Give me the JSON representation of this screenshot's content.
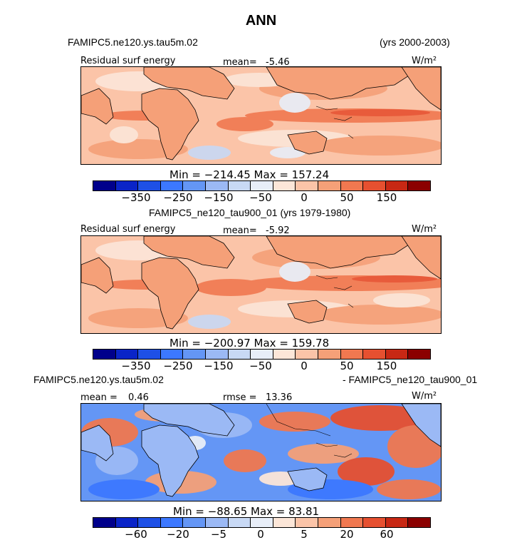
{
  "title": "ANN",
  "chart_data": [
    {
      "type": "heatmap",
      "case_name": "FAMIPC5.ne120.ys.tau5m.02",
      "years": "(yrs 2000-2003)",
      "variable": "Residual surf energy",
      "mean_label": "mean=",
      "mean_value": "-5.46",
      "units": "W/m²",
      "min_max_text": "Min = −214.45 Max = 157.24",
      "min": -214.45,
      "max": 157.24,
      "tick_labels": [
        "−350",
        "−250",
        "−150",
        "−50",
        "0",
        "50",
        "150"
      ]
    },
    {
      "type": "heatmap",
      "case_name": "FAMIPC5_ne120_tau900_01 (yrs 1979-1980)",
      "variable": "Residual surf energy",
      "mean_label": "mean=",
      "mean_value": "-5.92",
      "units": "W/m²",
      "min_max_text": "Min = −200.97 Max = 159.78",
      "min": -200.97,
      "max": 159.78,
      "tick_labels": [
        "−350",
        "−250",
        "−150",
        "−50",
        "0",
        "50",
        "150"
      ]
    },
    {
      "type": "heatmap",
      "case_left": "FAMIPC5.ne120.ys.tau5m.02",
      "case_right": "- FAMIPC5_ne120_tau900_01",
      "mean_label": "mean =",
      "mean_value": "0.46",
      "rmse_label": "rmse =",
      "rmse_value": "13.36",
      "units": "W/m²",
      "min_max_text": "Min = −88.65 Max = 83.81",
      "min": -88.65,
      "max": 83.81,
      "tick_labels": [
        "−60",
        "−20",
        "−5",
        "0",
        "5",
        "20",
        "60"
      ]
    }
  ],
  "colorbar_colors": [
    "#00008b",
    "#0a24c8",
    "#1e50e6",
    "#3c78ff",
    "#6496f5",
    "#9bb9f5",
    "#c8d9f5",
    "#e8eef8",
    "#fce6d8",
    "#fbc4a8",
    "#f5a078",
    "#f07850",
    "#e65030",
    "#c82814",
    "#8b0000"
  ]
}
